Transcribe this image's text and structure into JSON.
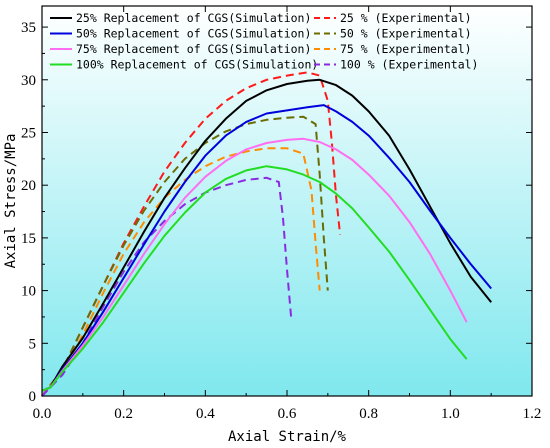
{
  "chart_data": {
    "type": "line",
    "xlabel": "Axial Strain/%",
    "ylabel": "Axial Stress/MPa",
    "xlim": [
      0.0,
      1.2
    ],
    "ylim": [
      0,
      37
    ],
    "xticks": [
      "0.0",
      "0.2",
      "0.4",
      "0.6",
      "0.8",
      "1.0",
      "1.2"
    ],
    "yticks": [
      "0",
      "5",
      "10",
      "15",
      "20",
      "25",
      "30",
      "35"
    ],
    "background": "gradient light cyan to white",
    "legend_position": "top-left",
    "series": [
      {
        "name": "25% Replacement of CGS(Simulation)",
        "color": "#000000",
        "dash": "solid",
        "x": [
          0.0,
          0.02,
          0.05,
          0.1,
          0.15,
          0.2,
          0.25,
          0.3,
          0.35,
          0.4,
          0.45,
          0.5,
          0.55,
          0.6,
          0.65,
          0.68,
          0.72,
          0.76,
          0.8,
          0.85,
          0.9,
          0.95,
          1.0,
          1.05,
          1.1
        ],
        "y": [
          0.5,
          0.8,
          2.8,
          5.5,
          8.8,
          12.2,
          15.6,
          18.8,
          21.6,
          24.2,
          26.3,
          28.0,
          29.0,
          29.6,
          29.9,
          30.0,
          29.5,
          28.5,
          27.0,
          24.7,
          21.5,
          18.0,
          14.5,
          11.3,
          8.9
        ]
      },
      {
        "name": "50% Replacement of CGS(Simulation)",
        "color": "#0000dd",
        "dash": "solid",
        "x": [
          0.0,
          0.02,
          0.05,
          0.1,
          0.15,
          0.2,
          0.25,
          0.3,
          0.35,
          0.4,
          0.45,
          0.5,
          0.55,
          0.6,
          0.65,
          0.69,
          0.72,
          0.76,
          0.8,
          0.85,
          0.9,
          0.95,
          1.0,
          1.05,
          1.1
        ],
        "y": [
          0.5,
          0.8,
          2.5,
          5.0,
          8.0,
          11.2,
          14.4,
          17.5,
          20.3,
          22.8,
          24.7,
          26.0,
          26.8,
          27.1,
          27.4,
          27.6,
          27.0,
          26.0,
          24.7,
          22.6,
          20.3,
          17.6,
          15.0,
          12.5,
          10.2
        ]
      },
      {
        "name": "75% Replacement of CGS(Simulation)",
        "color": "#ff6ef0",
        "dash": "solid",
        "x": [
          0.0,
          0.02,
          0.05,
          0.1,
          0.15,
          0.2,
          0.25,
          0.3,
          0.35,
          0.4,
          0.45,
          0.5,
          0.55,
          0.6,
          0.64,
          0.68,
          0.72,
          0.76,
          0.8,
          0.85,
          0.9,
          0.95,
          1.0,
          1.04
        ],
        "y": [
          0.5,
          0.8,
          2.4,
          4.8,
          7.5,
          10.5,
          13.5,
          16.3,
          18.8,
          20.8,
          22.3,
          23.4,
          24.0,
          24.3,
          24.4,
          24.1,
          23.4,
          22.4,
          21.0,
          19.0,
          16.5,
          13.5,
          10.0,
          7.0
        ]
      },
      {
        "name": "100% Replacement of CGS(Simulation)",
        "color": "#22dd22",
        "dash": "solid",
        "x": [
          0.0,
          0.02,
          0.05,
          0.1,
          0.15,
          0.2,
          0.25,
          0.3,
          0.35,
          0.4,
          0.45,
          0.5,
          0.55,
          0.6,
          0.64,
          0.68,
          0.72,
          0.76,
          0.8,
          0.85,
          0.9,
          0.95,
          1.0,
          1.04
        ],
        "y": [
          0.5,
          0.8,
          2.3,
          4.5,
          7.0,
          9.8,
          12.6,
          15.2,
          17.4,
          19.3,
          20.6,
          21.4,
          21.8,
          21.5,
          21.0,
          20.3,
          19.2,
          17.8,
          16.0,
          13.7,
          11.0,
          8.2,
          5.4,
          3.5
        ]
      },
      {
        "name": "25 % (Experimental)",
        "color": "#ff1a1a",
        "dash": "dashed",
        "x": [
          0.0,
          0.05,
          0.1,
          0.15,
          0.2,
          0.25,
          0.3,
          0.35,
          0.4,
          0.45,
          0.5,
          0.55,
          0.6,
          0.65,
          0.68,
          0.7,
          0.71,
          0.72,
          0.73
        ],
        "y": [
          0.0,
          2.5,
          6.5,
          10.5,
          14.5,
          18.0,
          21.3,
          24.0,
          26.3,
          28.0,
          29.2,
          30.0,
          30.4,
          30.7,
          30.4,
          28.0,
          24.0,
          19.0,
          15.3
        ]
      },
      {
        "name": "50 % (Experimental)",
        "color": "#6b6b00",
        "dash": "dashed",
        "x": [
          0.0,
          0.05,
          0.1,
          0.15,
          0.2,
          0.25,
          0.3,
          0.35,
          0.4,
          0.45,
          0.5,
          0.55,
          0.6,
          0.64,
          0.67,
          0.68,
          0.69,
          0.7
        ],
        "y": [
          0.0,
          2.5,
          6.5,
          10.5,
          14.3,
          17.6,
          20.3,
          22.5,
          24.0,
          25.1,
          25.8,
          26.2,
          26.4,
          26.5,
          25.8,
          21.0,
          15.0,
          10.0
        ]
      },
      {
        "name": "75 % (Experimental)",
        "color": "#ff8c00",
        "dash": "dashed",
        "x": [
          0.0,
          0.05,
          0.1,
          0.15,
          0.2,
          0.25,
          0.3,
          0.35,
          0.4,
          0.45,
          0.5,
          0.55,
          0.6,
          0.64,
          0.66,
          0.67,
          0.68
        ],
        "y": [
          0.0,
          2.3,
          5.8,
          9.8,
          13.5,
          16.5,
          18.8,
          20.5,
          21.8,
          22.7,
          23.2,
          23.5,
          23.5,
          23.0,
          19.5,
          14.5,
          10.0
        ]
      },
      {
        "name": "100 % (Experimental)",
        "color": "#8a2be2",
        "dash": "dashed",
        "x": [
          0.0,
          0.05,
          0.1,
          0.15,
          0.2,
          0.25,
          0.3,
          0.35,
          0.4,
          0.45,
          0.5,
          0.55,
          0.58,
          0.59,
          0.6,
          0.61
        ],
        "y": [
          0.0,
          2.0,
          5.0,
          8.5,
          11.8,
          14.6,
          16.6,
          18.2,
          19.3,
          20.0,
          20.5,
          20.7,
          20.3,
          17.0,
          12.0,
          7.5
        ]
      }
    ]
  }
}
